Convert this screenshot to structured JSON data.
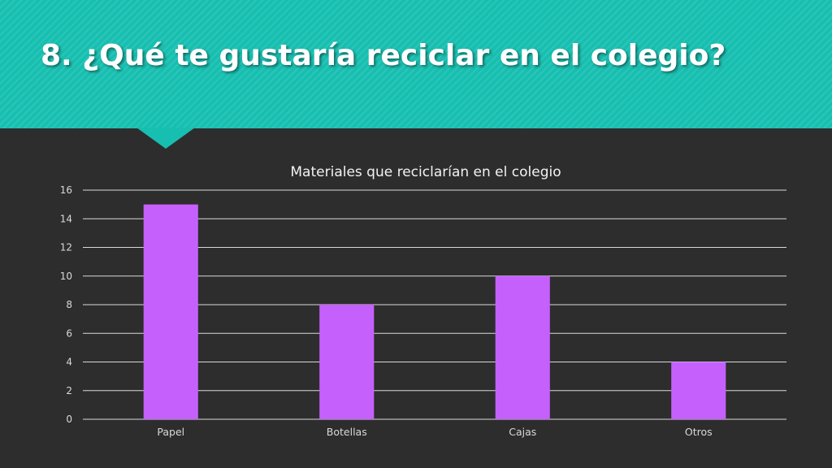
{
  "slide": {
    "title": "8. ¿Qué te gustaría reciclar en el colegio?"
  },
  "colors": {
    "header": "#17bfb0",
    "background": "#2d2d2d",
    "bar": "#c660fc",
    "gridline": "#d9d9d9",
    "text": "#f2f2f2"
  },
  "chart_data": {
    "type": "bar",
    "title": "Materiales que reciclarían en el colegio",
    "categories": [
      "Papel",
      "Botellas",
      "Cajas",
      "Otros"
    ],
    "values": [
      15,
      8,
      10,
      4
    ],
    "xlabel": "",
    "ylabel": "",
    "ylim": [
      0,
      16
    ],
    "yticks": [
      0,
      2,
      4,
      6,
      8,
      10,
      12,
      14,
      16
    ],
    "grid": true,
    "legend": "none"
  }
}
